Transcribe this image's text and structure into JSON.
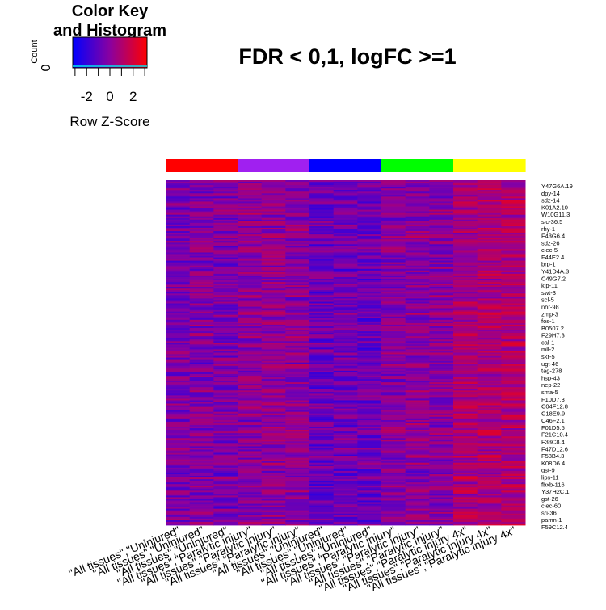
{
  "chart_data": {
    "type": "heatmap",
    "title": "FDR < 0,1, logFC >=1",
    "color_key": {
      "title_line1": "Color Key",
      "title_line2": "and Histogram",
      "count_label": "Count",
      "count_tick": "0",
      "xlabel": "Row Z-Score",
      "ticks": [
        "-2",
        "0",
        "2"
      ],
      "tick_values": [
        -2,
        0,
        2
      ],
      "range": [
        -3.2,
        3.2
      ],
      "colors": {
        "low": "#0000ff",
        "high": "#ff0000"
      }
    },
    "groups": [
      {
        "name": "All tissues, Uninjured",
        "color": "#ff0000"
      },
      {
        "name": "All tissues, Paralytic injury",
        "color": "#a020f0"
      },
      {
        "name": "All tissues, Uninjured",
        "color": "#0000ff"
      },
      {
        "name": "All tissues, Paralytic injury",
        "color": "#00ff00"
      },
      {
        "name": "All tissues, Paralytic injury 4x",
        "color": "#ffff00"
      }
    ],
    "column_labels": [
      "\"All tissues\",\"Uninjured\"",
      "\"All tissues\",\"Uninjured\"",
      "\"All tissues\",\"Uninjured\"",
      "\"All tissues\",\"Paralytic injury\"",
      "\"All tissues\",\"Paralytic injury\"",
      "\"All tissues\",\"Paralytic injury\"",
      "\"All tissues\",\"Uninjured\"",
      "\"All tissues\",\"Uninjured\"",
      "\"All tissues\",\"Uninjured\"",
      "\"All tissues\",\"Paralytic injury\"",
      "\"All tissues\",\"Paralytic injury\"",
      "\"All tissues\",\"Paralytic injury\"",
      "\"All tissues\",\"Paralytic injury 4x\"",
      "\"All tissues\",\"Paralytic injury 4x\"",
      "\"All tissues\",\"Paralytic injury 4x\""
    ],
    "column_groups": [
      0,
      0,
      0,
      1,
      1,
      1,
      2,
      2,
      2,
      3,
      3,
      3,
      4,
      4,
      4
    ],
    "column_mean_zscores": [
      -0.3,
      -0.2,
      -0.3,
      0.1,
      0.2,
      0.1,
      -0.8,
      -0.7,
      -0.8,
      0.0,
      0.1,
      0.0,
      0.9,
      1.0,
      1.1
    ],
    "row_labels": [
      "Y47G6A.19",
      "dpy-14",
      "sdz-14",
      "K01A2.10",
      "W10G11.3",
      "slc-36.5",
      "rhy-1",
      "F43G6.4",
      "sdz-26",
      "clec-5",
      "F44E2.4",
      "brp-1",
      "Y41D4A.3",
      "C49G7.2",
      "klp-11",
      "swt-3",
      "scl-5",
      "nhr-98",
      "zmp-3",
      "fos-1",
      "B0507.2",
      "F29H7.3",
      "cal-1",
      "mll-2",
      "skr-5",
      "ugt-46",
      "tag-278",
      "hsp-43",
      "nep-22",
      "sma-5",
      "F10D7.3",
      "C04F12.8",
      "C18E9.9",
      "C46F2.1",
      "F01D5.5",
      "F21C10.4",
      "F33C8.4",
      "F47D12.6",
      "F58B4.3",
      "K08D6.4",
      "gst-9",
      "lips-11",
      "fbxb-116",
      "Y37H2C.1",
      "gst-26",
      "clec-60",
      "sri-36",
      "pamn-1",
      "F59C12.4"
    ],
    "n_rows_heatmap": 210,
    "grid": false
  }
}
